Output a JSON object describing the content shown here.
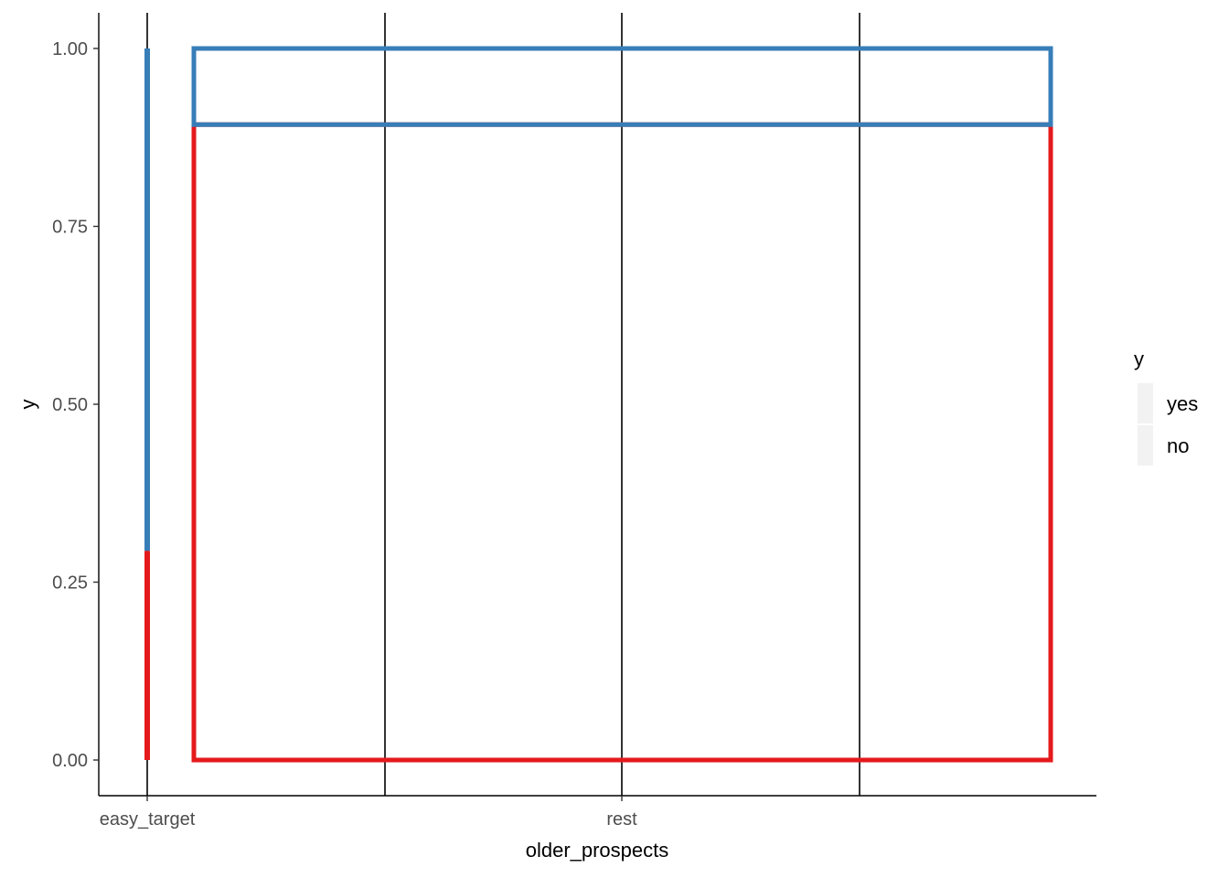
{
  "chart_data": {
    "type": "mosaic",
    "title": "",
    "xlabel": "older_prospects",
    "ylabel": "y",
    "x_tick_labels": [
      "easy_target",
      "rest"
    ],
    "y_ticks": [
      "0.00",
      "0.25",
      "0.50",
      "0.75",
      "1.00"
    ],
    "ylim": [
      0,
      1
    ],
    "categories": [
      "easy_target",
      "rest"
    ],
    "category_widths": [
      0.005,
      0.995
    ],
    "series": [
      {
        "name": "yes",
        "color": "#377EB8",
        "values": [
          0.706,
          0.107
        ]
      },
      {
        "name": "no",
        "color": "#E41A1C",
        "values": [
          0.294,
          0.893
        ]
      }
    ],
    "legend": {
      "title": "y",
      "position": "right",
      "entries": [
        "yes",
        "no"
      ]
    },
    "grid": false
  }
}
